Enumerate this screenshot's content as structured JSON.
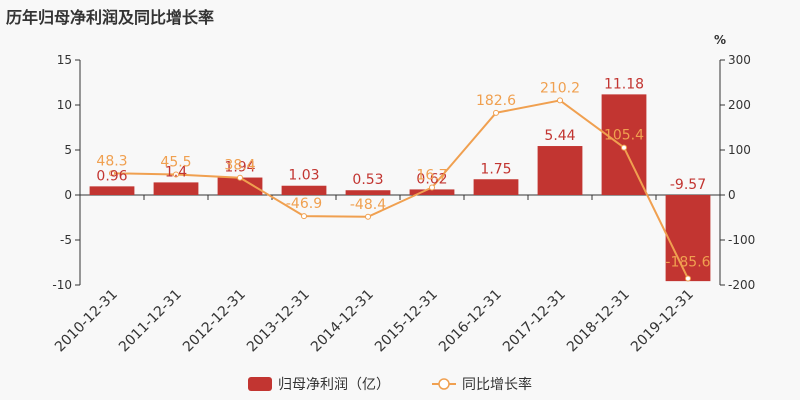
{
  "chart_title": "历年归母净利润及同比增长率",
  "chart_data": {
    "type": "bar",
    "categories": [
      "2010-12-31",
      "2011-12-31",
      "2012-12-31",
      "2013-12-31",
      "2014-12-31",
      "2015-12-31",
      "2016-12-31",
      "2017-12-31",
      "2018-12-31",
      "2019-12-31"
    ],
    "series": [
      {
        "name": "归母净利润（亿）",
        "type": "bar",
        "axis": "left",
        "color": "#c23531",
        "values": [
          0.96,
          1.4,
          1.94,
          1.03,
          0.53,
          0.62,
          1.75,
          5.44,
          11.18,
          -9.57
        ],
        "labels": [
          "0.96",
          "1.4",
          "1.94",
          "1.03",
          "0.53",
          "0.62",
          "1.75",
          "5.44",
          "11.18",
          "-9.57"
        ]
      },
      {
        "name": "同比增长率",
        "type": "line",
        "axis": "right",
        "color": "#f0a050",
        "values": [
          48.3,
          45.5,
          38.4,
          -46.9,
          -48.4,
          16.7,
          182.6,
          210.2,
          105.4,
          -185.6
        ],
        "labels": [
          "48.3",
          "45.5",
          "38.4",
          "-46.9",
          "-48.4",
          "16.7",
          "182.6",
          "210.2",
          "105.4",
          "-185.6"
        ]
      }
    ],
    "y_left": {
      "ylim": [
        -10,
        15
      ],
      "ticks": [
        "15",
        "10",
        "5",
        "0",
        "-5",
        "-10"
      ],
      "tick_values": [
        15,
        10,
        5,
        0,
        -5,
        -10
      ]
    },
    "y_right": {
      "ylim": [
        -200,
        300
      ],
      "unit": "%",
      "ticks": [
        "300",
        "200",
        "100",
        "0",
        "-100",
        "-200"
      ],
      "tick_values": [
        300,
        200,
        100,
        0,
        -100,
        -200
      ]
    },
    "legend_position": "bottom"
  }
}
